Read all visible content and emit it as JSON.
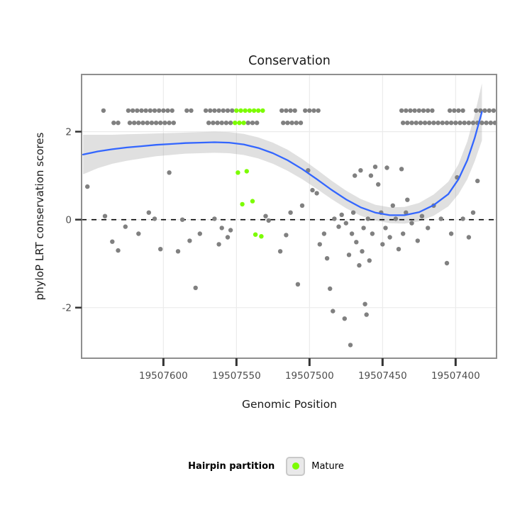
{
  "chart_data": {
    "type": "scatter",
    "title": "Conservation",
    "xlabel": "Genomic Position",
    "ylabel": "phyloP LRT conservation scores",
    "x_ticks": [
      19507600,
      19507550,
      19507500,
      19507450,
      19507400
    ],
    "y_ticks": [
      -2,
      0,
      2
    ],
    "x_domain": [
      19507656,
      19507372
    ],
    "y_domain": [
      -3.15,
      3.3
    ],
    "x_axis_reversed": true,
    "grid": true,
    "reference_line_y": 0,
    "style": {
      "point_color_other": "#808080",
      "point_color_mature": "#7CFC00",
      "smooth_line_color": "#3366FF",
      "band_color": "#999999",
      "band_opacity": 0.3,
      "reference_line_color": "#000000",
      "panel_border_color": "#8F8F8F",
      "panel_background": "#FFFFFF",
      "gridline_color": "#EBEBEB",
      "tick_color": "#333333",
      "text_color": "#1A1A1A",
      "tick_label_color": "#4D4D4D",
      "legend_key_bg": "#E9E9E9",
      "legend_key_border": "#C9C9C9"
    },
    "series": [
      {
        "name": "Other",
        "color": "#808080",
        "points": [
          [
            19507641,
            2.48
          ],
          [
            19507624,
            2.48
          ],
          [
            19507621,
            2.48
          ],
          [
            19507618,
            2.48
          ],
          [
            19507615,
            2.48
          ],
          [
            19507612,
            2.48
          ],
          [
            19507609,
            2.48
          ],
          [
            19507606,
            2.48
          ],
          [
            19507603,
            2.48
          ],
          [
            19507600,
            2.48
          ],
          [
            19507597,
            2.48
          ],
          [
            19507594,
            2.48
          ],
          [
            19507584,
            2.48
          ],
          [
            19507581,
            2.48
          ],
          [
            19507571,
            2.48
          ],
          [
            19507568,
            2.48
          ],
          [
            19507565,
            2.48
          ],
          [
            19507562,
            2.48
          ],
          [
            19507559,
            2.48
          ],
          [
            19507556,
            2.48
          ],
          [
            19507553,
            2.48
          ],
          [
            19507519,
            2.48
          ],
          [
            19507516,
            2.48
          ],
          [
            19507513,
            2.48
          ],
          [
            19507510,
            2.48
          ],
          [
            19507503,
            2.48
          ],
          [
            19507500,
            2.48
          ],
          [
            19507497,
            2.48
          ],
          [
            19507494,
            2.48
          ],
          [
            19507634,
            2.2
          ],
          [
            19507631,
            2.2
          ],
          [
            19507623,
            2.2
          ],
          [
            19507620,
            2.2
          ],
          [
            19507617,
            2.2
          ],
          [
            19507614,
            2.2
          ],
          [
            19507611,
            2.2
          ],
          [
            19507608,
            2.2
          ],
          [
            19507605,
            2.2
          ],
          [
            19507602,
            2.2
          ],
          [
            19507599,
            2.2
          ],
          [
            19507596,
            2.2
          ],
          [
            19507593,
            2.2
          ],
          [
            19507569,
            2.2
          ],
          [
            19507566,
            2.2
          ],
          [
            19507563,
            2.2
          ],
          [
            19507560,
            2.2
          ],
          [
            19507557,
            2.2
          ],
          [
            19507554,
            2.2
          ],
          [
            19507542,
            2.2
          ],
          [
            19507539,
            2.2
          ],
          [
            19507536,
            2.2
          ],
          [
            19507518,
            2.2
          ],
          [
            19507515,
            2.2
          ],
          [
            19507512,
            2.2
          ],
          [
            19507509,
            2.2
          ],
          [
            19507506,
            2.2
          ],
          [
            19507437,
            2.48
          ],
          [
            19507434,
            2.48
          ],
          [
            19507431,
            2.48
          ],
          [
            19507428,
            2.48
          ],
          [
            19507425,
            2.48
          ],
          [
            19507422,
            2.48
          ],
          [
            19507419,
            2.48
          ],
          [
            19507416,
            2.48
          ],
          [
            19507404,
            2.48
          ],
          [
            19507401,
            2.48
          ],
          [
            19507398,
            2.48
          ],
          [
            19507395,
            2.48
          ],
          [
            19507386,
            2.48
          ],
          [
            19507383,
            2.48
          ],
          [
            19507380,
            2.48
          ],
          [
            19507377,
            2.48
          ],
          [
            19507374,
            2.48
          ],
          [
            19507436,
            2.2
          ],
          [
            19507433,
            2.2
          ],
          [
            19507430,
            2.2
          ],
          [
            19507427,
            2.2
          ],
          [
            19507424,
            2.2
          ],
          [
            19507421,
            2.2
          ],
          [
            19507418,
            2.2
          ],
          [
            19507415,
            2.2
          ],
          [
            19507412,
            2.2
          ],
          [
            19507409,
            2.2
          ],
          [
            19507406,
            2.2
          ],
          [
            19507403,
            2.2
          ],
          [
            19507400,
            2.2
          ],
          [
            19507397,
            2.2
          ],
          [
            19507394,
            2.2
          ],
          [
            19507391,
            2.2
          ],
          [
            19507388,
            2.2
          ],
          [
            19507385,
            2.2
          ],
          [
            19507382,
            2.2
          ],
          [
            19507379,
            2.2
          ],
          [
            19507376,
            2.2
          ],
          [
            19507373,
            2.2
          ],
          [
            19507652,
            0.75
          ],
          [
            19507640,
            0.08
          ],
          [
            19507635,
            -0.5
          ],
          [
            19507631,
            -0.7
          ],
          [
            19507626,
            -0.16
          ],
          [
            19507617,
            -0.32
          ],
          [
            19507610,
            0.16
          ],
          [
            19507606,
            0.02
          ],
          [
            19507602,
            -0.67
          ],
          [
            19507596,
            1.07
          ],
          [
            19507590,
            -0.72
          ],
          [
            19507587,
            0.0
          ],
          [
            19507582,
            -0.48
          ],
          [
            19507578,
            -1.55
          ],
          [
            19507575,
            -0.32
          ],
          [
            19507565,
            0.02
          ],
          [
            19507562,
            -0.56
          ],
          [
            19507560,
            -0.19
          ],
          [
            19507556,
            -0.4
          ],
          [
            19507554,
            -0.24
          ],
          [
            19507530,
            0.08
          ],
          [
            19507528,
            -0.02
          ],
          [
            19507520,
            -0.72
          ],
          [
            19507516,
            -0.35
          ],
          [
            19507513,
            0.16
          ],
          [
            19507508,
            -1.47
          ],
          [
            19507505,
            0.32
          ],
          [
            19507501,
            1.12
          ],
          [
            19507498,
            0.67
          ],
          [
            19507495,
            0.6
          ],
          [
            19507493,
            -0.56
          ],
          [
            19507490,
            -0.32
          ],
          [
            19507488,
            -0.88
          ],
          [
            19507486,
            -1.57
          ],
          [
            19507484,
            -2.08
          ],
          [
            19507483,
            0.02
          ],
          [
            19507480,
            -0.16
          ],
          [
            19507478,
            0.11
          ],
          [
            19507476,
            -2.25
          ],
          [
            19507475,
            -0.08
          ],
          [
            19507473,
            -0.8
          ],
          [
            19507472,
            -2.85
          ],
          [
            19507471,
            -0.32
          ],
          [
            19507470,
            0.16
          ],
          [
            19507469,
            1.0
          ],
          [
            19507468,
            -0.51
          ],
          [
            19507466,
            -1.04
          ],
          [
            19507465,
            1.12
          ],
          [
            19507464,
            -0.72
          ],
          [
            19507463,
            -0.19
          ],
          [
            19507462,
            -1.92
          ],
          [
            19507461,
            -2.16
          ],
          [
            19507460,
            0.02
          ],
          [
            19507459,
            -0.93
          ],
          [
            19507458,
            1.0
          ],
          [
            19507457,
            -0.32
          ],
          [
            19507455,
            1.2
          ],
          [
            19507453,
            0.8
          ],
          [
            19507451,
            0.16
          ],
          [
            19507450,
            -0.56
          ],
          [
            19507448,
            -0.19
          ],
          [
            19507447,
            1.18
          ],
          [
            19507445,
            -0.4
          ],
          [
            19507443,
            0.32
          ],
          [
            19507441,
            0.02
          ],
          [
            19507439,
            -0.67
          ],
          [
            19507437,
            1.15
          ],
          [
            19507436,
            -0.32
          ],
          [
            19507434,
            0.16
          ],
          [
            19507433,
            0.45
          ],
          [
            19507430,
            -0.08
          ],
          [
            19507426,
            -0.48
          ],
          [
            19507423,
            0.08
          ],
          [
            19507419,
            -0.19
          ],
          [
            19507415,
            0.32
          ],
          [
            19507410,
            0.02
          ],
          [
            19507406,
            -0.99
          ],
          [
            19507403,
            -0.32
          ],
          [
            19507399,
            0.96
          ],
          [
            19507395,
            0.02
          ],
          [
            19507391,
            -0.4
          ],
          [
            19507388,
            0.16
          ],
          [
            19507385,
            0.88
          ]
        ]
      },
      {
        "name": "Mature",
        "color": "#7CFC00",
        "points": [
          [
            19507550,
            2.48
          ],
          [
            19507547,
            2.48
          ],
          [
            19507544,
            2.48
          ],
          [
            19507541,
            2.48
          ],
          [
            19507538,
            2.48
          ],
          [
            19507535,
            2.48
          ],
          [
            19507532,
            2.48
          ],
          [
            19507551,
            2.2
          ],
          [
            19507548,
            2.2
          ],
          [
            19507545,
            2.2
          ],
          [
            19507549,
            1.07
          ],
          [
            19507543,
            1.1
          ],
          [
            19507546,
            0.35
          ],
          [
            19507539,
            0.42
          ],
          [
            19507537,
            -0.34
          ],
          [
            19507533,
            -0.38
          ]
        ]
      }
    ],
    "smooth": {
      "color": "#3366FF",
      "band_color": "#999999",
      "band_opacity": 0.3,
      "points": [
        [
          19507655,
          1.48,
          0.45
        ],
        [
          19507645,
          1.55,
          0.38
        ],
        [
          19507635,
          1.6,
          0.33
        ],
        [
          19507625,
          1.64,
          0.3
        ],
        [
          19507615,
          1.67,
          0.28
        ],
        [
          19507605,
          1.7,
          0.26
        ],
        [
          19507595,
          1.72,
          0.25
        ],
        [
          19507585,
          1.74,
          0.24
        ],
        [
          19507575,
          1.75,
          0.24
        ],
        [
          19507565,
          1.76,
          0.24
        ],
        [
          19507555,
          1.75,
          0.24
        ],
        [
          19507545,
          1.71,
          0.24
        ],
        [
          19507535,
          1.63,
          0.24
        ],
        [
          19507525,
          1.51,
          0.24
        ],
        [
          19507515,
          1.35,
          0.24
        ],
        [
          19507505,
          1.15,
          0.23
        ],
        [
          19507495,
          0.92,
          0.22
        ],
        [
          19507485,
          0.68,
          0.21
        ],
        [
          19507475,
          0.46,
          0.2
        ],
        [
          19507465,
          0.28,
          0.19
        ],
        [
          19507455,
          0.16,
          0.18
        ],
        [
          19507445,
          0.1,
          0.18
        ],
        [
          19507435,
          0.1,
          0.19
        ],
        [
          19507425,
          0.17,
          0.21
        ],
        [
          19507415,
          0.33,
          0.24
        ],
        [
          19507405,
          0.58,
          0.28
        ],
        [
          19507398,
          0.92,
          0.34
        ],
        [
          19507392,
          1.35,
          0.43
        ],
        [
          19507387,
          1.85,
          0.53
        ],
        [
          19507382,
          2.45,
          0.65
        ]
      ]
    },
    "legend": {
      "title": "Hairpin partition",
      "items": [
        {
          "label": "Mature",
          "color": "#7CFC00"
        }
      ]
    }
  }
}
